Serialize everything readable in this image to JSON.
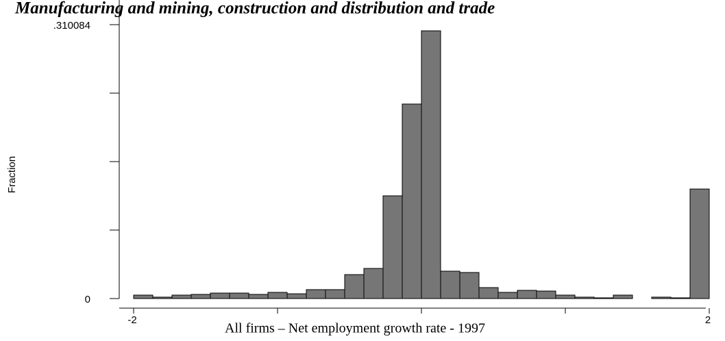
{
  "chart_data": {
    "type": "histogram",
    "title": "Manufacturing and mining, construction and distribution and trade",
    "x_label": "All firms – Net employment growth rate - 1997",
    "y_label": "Fraction",
    "bins": [
      -2,
      -1.8667,
      -1.7333,
      -1.6,
      -1.4667,
      -1.3333,
      -1.2,
      -1.0667,
      -0.9333,
      -0.8,
      -0.6667,
      -0.5333,
      -0.4,
      -0.2667,
      -0.1333,
      0,
      0.1333,
      0.2667,
      0.4,
      0.5333,
      0.6667,
      0.8,
      0.9333,
      1.0667,
      1.2,
      1.3333,
      1.4667,
      1.6,
      1.7333,
      1.8667,
      2
    ],
    "values": [
      0.0039,
      0.0016,
      0.0039,
      0.0047,
      0.0062,
      0.0062,
      0.0047,
      0.007,
      0.0054,
      0.0101,
      0.0101,
      0.0271,
      0.0341,
      0.1163,
      0.2202,
      0.3031,
      0.031,
      0.0295,
      0.0124,
      0.007,
      0.0093,
      0.0085,
      0.0039,
      0.0016,
      0.0008,
      0.0039,
      0,
      0.0016,
      0.0008,
      0.124
    ],
    "color": "#767676",
    "xlim": [
      -2.1,
      2.1
    ],
    "ylim": [
      0,
      0.310084
    ],
    "xticks": [
      -2,
      2
    ],
    "x_minor_ticks": [
      -1,
      0,
      1
    ],
    "yticks": [
      0,
      {
        "value": 0.310084,
        "label": ".310084"
      }
    ],
    "y_minor_ticks": [
      0.077521,
      0.155042,
      0.232563
    ]
  }
}
